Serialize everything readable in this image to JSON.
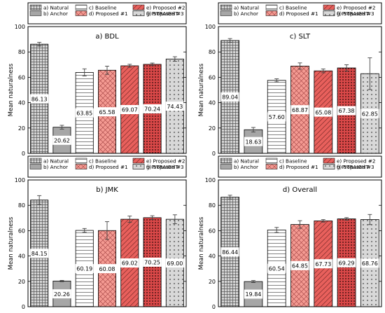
{
  "legend": {
    "entries": [
      {
        "label": "a) Natural",
        "pattern": "pat-grid",
        "fill": "#d4d4d4"
      },
      {
        "label": "b) Anchor",
        "pattern": "",
        "fill": "#a6a6a6"
      },
      {
        "label": "c) Baseline",
        "pattern": "pat-hlines",
        "fill": "#ffffff"
      },
      {
        "label": "d) Proposed #1",
        "pattern": "pat-cross-light",
        "fill": "#f49a92"
      },
      {
        "label": "e) Proposed #2",
        "pattern": "pat-diag",
        "fill": "#e8605c"
      },
      {
        "label": "f) Proposed #3",
        "pattern": "pat-dots-red",
        "fill": "#d94848"
      },
      {
        "label": "g) STRAIGHT",
        "pattern": "pat-dots-gray",
        "fill": "#d8d8d8"
      }
    ]
  },
  "colors": {
    "natural": "#d4d4d4",
    "anchor": "#a6a6a6",
    "baseline": "#ffffff",
    "proposed1": "#f49a92",
    "proposed2": "#e8605c",
    "proposed3": "#d94848",
    "straight": "#d8d8d8"
  },
  "chart_data": [
    {
      "type": "bar",
      "title": "a) BDL",
      "ylabel": "Mean naturalness",
      "ylim": [
        0,
        100
      ],
      "yticks": [
        "0",
        "20",
        "40",
        "60",
        "80",
        "100"
      ],
      "categories": [
        "a) Natural",
        "b) Anchor",
        "c) Baseline",
        "d) Proposed #1",
        "e) Proposed #2",
        "f) Proposed #3",
        "g) STRAIGHT"
      ],
      "values": [
        86.13,
        20.62,
        63.85,
        65.58,
        69.07,
        70.24,
        74.43
      ],
      "labels": [
        "86.13",
        "20.62",
        "63.85",
        "65.58",
        "69.07",
        "70.24",
        "74.43"
      ],
      "errors": [
        1.5,
        1.5,
        2.8,
        3.2,
        1.2,
        1.0,
        1.8
      ]
    },
    {
      "type": "bar",
      "title": "c) SLT",
      "ylabel": "Mean naturalness",
      "ylim": [
        0,
        100
      ],
      "yticks": [
        "0",
        "20",
        "40",
        "60",
        "80",
        "100"
      ],
      "categories": [
        "a) Natural",
        "b) Anchor",
        "c) Baseline",
        "d) Proposed #1",
        "e) Proposed #2",
        "f) Proposed #3",
        "g) STRAIGHT"
      ],
      "values": [
        89.04,
        18.63,
        57.6,
        68.87,
        65.08,
        67.38,
        62.85
      ],
      "labels": [
        "89.04",
        "18.63",
        "57.60",
        "68.87",
        "65.08",
        "67.38",
        "62.85"
      ],
      "errors": [
        1.5,
        1.8,
        1.2,
        2.5,
        1.5,
        2.5,
        12.5
      ]
    },
    {
      "type": "bar",
      "title": "b) JMK",
      "ylabel": "Mean naturalness",
      "ylim": [
        0,
        100
      ],
      "yticks": [
        "0",
        "20",
        "40",
        "60",
        "80",
        "100"
      ],
      "categories": [
        "a) Natural",
        "b) Anchor",
        "c) Baseline",
        "d) Proposed #1",
        "e) Proposed #2",
        "f) Proposed #3",
        "g) STRAIGHT"
      ],
      "values": [
        84.15,
        20.26,
        60.19,
        60.08,
        69.02,
        70.25,
        69.0
      ],
      "labels": [
        "84.15",
        "20.26",
        "60.19",
        "60.08",
        "69.02",
        "70.25",
        "69.00"
      ],
      "errors": [
        3.5,
        0.5,
        1.5,
        7.0,
        2.5,
        1.5,
        3.5
      ]
    },
    {
      "type": "bar",
      "title": "d) Overall",
      "ylabel": "Mean naturalness",
      "ylim": [
        0,
        100
      ],
      "yticks": [
        "0",
        "20",
        "40",
        "60",
        "80",
        "100"
      ],
      "categories": [
        "a) Natural",
        "b) Anchor",
        "c) Baseline",
        "d) Proposed #1",
        "e) Proposed #2",
        "f) Proposed #3",
        "g) STRAIGHT"
      ],
      "values": [
        86.44,
        19.84,
        60.54,
        64.85,
        67.73,
        69.29,
        68.76
      ],
      "labels": [
        "86.44",
        "19.84",
        "60.54",
        "64.85",
        "67.73",
        "69.29",
        "68.76"
      ],
      "errors": [
        1.5,
        0.8,
        2.0,
        3.0,
        1.0,
        1.0,
        4.0
      ]
    }
  ]
}
